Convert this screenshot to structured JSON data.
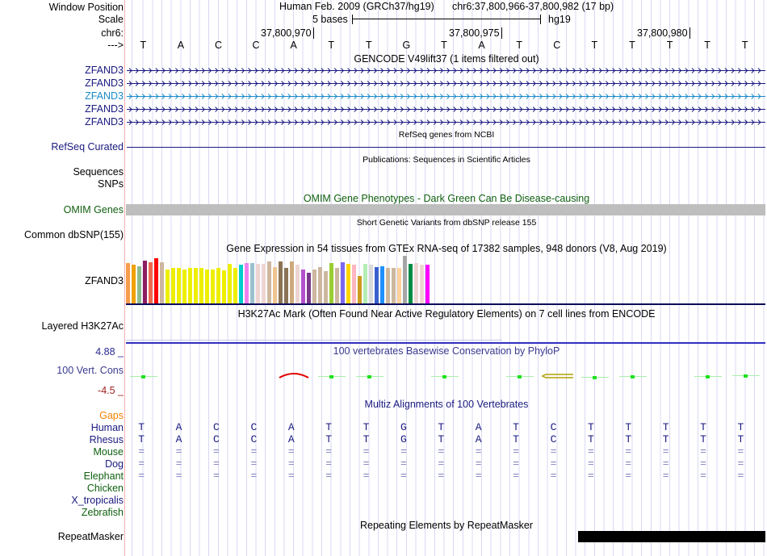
{
  "header": {
    "window_position_label": "Window Position",
    "scale_label": "Scale",
    "chrom_label": "chr6:",
    "strand_label": "--->",
    "assembly": "Human Feb. 2009 (GRCh37/hg19)",
    "position": "chr6:37,800,966-37,800,982 (17 bp)",
    "scale_text": "5 bases",
    "scale_db": "hg19",
    "ticks": [
      "37,800,970",
      "37,800,975",
      "37,800,980"
    ],
    "bases": [
      "T",
      "A",
      "C",
      "C",
      "A",
      "T",
      "T",
      "G",
      "T",
      "A",
      "T",
      "C",
      "T",
      "T",
      "T",
      "T",
      "T"
    ]
  },
  "tracks": {
    "gencode": {
      "title": "GENCODE V49lift37 (1 items filtered out)",
      "items": [
        {
          "label": "ZFAND3",
          "color": "#1a1a80"
        },
        {
          "label": "ZFAND3",
          "color": "#1a1a80"
        },
        {
          "label": "ZFAND3",
          "color": "#1a8ac8"
        },
        {
          "label": "ZFAND3",
          "color": "#1a1a80"
        },
        {
          "label": "ZFAND3",
          "color": "#1a1a80"
        }
      ]
    },
    "refseq": {
      "title": "RefSeq genes from NCBI",
      "label": "RefSeq Curated"
    },
    "publications": {
      "title": "Publications: Sequences in Scientific Articles",
      "labels": [
        "Sequences",
        "SNPs"
      ]
    },
    "omim": {
      "title": "OMIM Gene Phenotypes - Dark Green Can Be Disease-causing",
      "label": "OMIM Genes"
    },
    "dbsnp": {
      "title": "Short Genetic Variants from dbSNP release 155",
      "label": "Common dbSNP(155)"
    },
    "gtex": {
      "title": "Gene Expression in 54 tissues from GTEx RNA-seq of 17382 samples, 948 donors (V8, Aug 2019)",
      "label": "ZFAND3"
    },
    "h3k27ac": {
      "title": "H3K27Ac Mark (Often Found Near Active Regulatory Elements) on 7 cell lines from ENCODE",
      "label": "Layered H3K27Ac"
    },
    "phylop": {
      "title": "100 vertebrates Basewise Conservation by PhyloP",
      "label": "100 Vert. Cons",
      "max_label": "4.88 _",
      "min_label": "-4.5 _",
      "range": [
        -4.5,
        4.88
      ],
      "values": [
        0.1,
        null,
        null,
        null,
        0.4,
        0.1,
        0.1,
        null,
        0.1,
        null,
        0.1,
        0.0,
        -0.3,
        0.1,
        null,
        0.1,
        0.3
      ]
    },
    "multiz": {
      "title": "Multiz Alignments of 100 Vertebrates",
      "species": [
        {
          "label": "Gaps",
          "color": "#f08000",
          "row": ""
        },
        {
          "label": "Human",
          "color": "#1a1a80",
          "row": "TACCATTGTATCTTTTT"
        },
        {
          "label": "Rhesus",
          "color": "#1a1a80",
          "row": "TACCATTGTATCTTTTT"
        },
        {
          "label": "Mouse",
          "color": "#106010",
          "row": "================="
        },
        {
          "label": "Dog",
          "color": "#1a1a80",
          "row": "================="
        },
        {
          "label": "Elephant",
          "color": "#106010",
          "row": "================="
        },
        {
          "label": "Chicken",
          "color": "#106010",
          "row": ""
        },
        {
          "label": "X_tropicalis",
          "color": "#1a1a80",
          "row": ""
        },
        {
          "label": "Zebrafish",
          "color": "#106010",
          "row": ""
        }
      ]
    },
    "repeatmasker": {
      "title": "Repeating Elements by RepeatMasker",
      "label": "RepeatMasker"
    }
  },
  "chart_data": {
    "type": "bar",
    "title": "Gene Expression in 54 tissues from GTEx RNA-seq of 17382 samples, 948 donors (V8, Aug 2019)",
    "values": [
      89,
      85,
      82,
      95,
      91,
      100,
      91,
      76,
      78,
      78,
      76,
      78,
      78,
      78,
      76,
      76,
      78,
      74,
      88,
      79,
      85,
      89,
      89,
      88,
      88,
      93,
      81,
      93,
      79,
      93,
      86,
      76,
      69,
      76,
      81,
      72,
      89,
      79,
      91,
      88,
      85,
      61,
      88,
      86,
      81,
      82,
      79,
      79,
      78,
      105,
      88,
      89,
      86,
      85
    ],
    "colors": [
      "#f79c4c",
      "#f0a000",
      "#8fbc8f",
      "#8b1c62",
      "#ee6a50",
      "#ff0000",
      "#cdb79e",
      "#eeee00",
      "#eeee00",
      "#eeee00",
      "#eeee00",
      "#eeee00",
      "#eeee00",
      "#eeee00",
      "#eeee00",
      "#eeee00",
      "#eeee00",
      "#eeee00",
      "#eeee00",
      "#eeee00",
      "#00cdcd",
      "#ee82ee",
      "#9ac0cd",
      "#eed5d2",
      "#eed5d2",
      "#cdb79e",
      "#eec591",
      "#8b7355",
      "#8b7355",
      "#cdaa7d",
      "#eed5d2",
      "#b452cd",
      "#7a378b",
      "#cdb79e",
      "#cdb79e",
      "#cdb79e",
      "#9acd32",
      "#cdb79e",
      "#7b68ee",
      "#ffd700",
      "#ffb6c1",
      "#cd9b1d",
      "#b4eeb4",
      "#d9d9d9",
      "#3a5fcd",
      "#1e90ff",
      "#cdb79e",
      "#cdb79e",
      "#ffd39b",
      "#a6a6a6",
      "#008b45",
      "#eed5d2",
      "#eed5d2",
      "#ff00ff"
    ],
    "ylim": [
      0,
      105
    ]
  }
}
